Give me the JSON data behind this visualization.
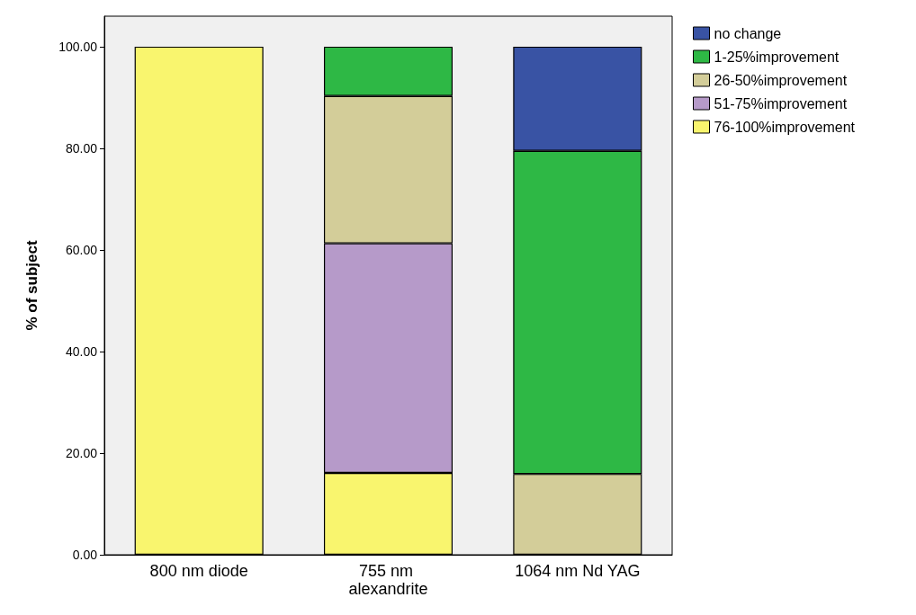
{
  "chart_data": {
    "type": "bar",
    "stacked": true,
    "ylabel": "% of subject",
    "categories": [
      "800 nm diode",
      "755 nm alexandrite",
      "1064 nm Nd YAG"
    ],
    "series": [
      {
        "name": "76-100%improvement",
        "color": "#f9f56e",
        "values": [
          100,
          16.1,
          null
        ]
      },
      {
        "name": "51-75%improvement",
        "color": "#b69ac9",
        "values": [
          null,
          45.2,
          null
        ]
      },
      {
        "name": "26-50%improvement",
        "color": "#d3cd99",
        "values": [
          null,
          29.0,
          15.9
        ]
      },
      {
        "name": "1-25%improvement",
        "color": "#2eb845",
        "values": [
          null,
          9.7,
          63.6
        ]
      },
      {
        "name": "no change",
        "color": "#3953a4",
        "values": [
          null,
          null,
          20.5
        ]
      }
    ],
    "ylim": [
      0,
      106
    ],
    "yticks": [
      {
        "value": 0,
        "label": "0.00"
      },
      {
        "value": 20,
        "label": "20.00"
      },
      {
        "value": 40,
        "label": "40.00"
      },
      {
        "value": 60,
        "label": "60.00"
      },
      {
        "value": 80,
        "label": "80.00"
      },
      {
        "value": 100,
        "label": "100.00"
      }
    ],
    "grid": false,
    "legend": "top right"
  }
}
